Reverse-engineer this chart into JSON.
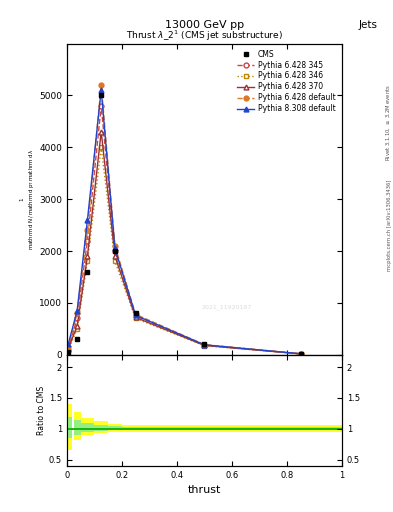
{
  "title_top": "13000 GeV pp",
  "title_right": "Jets",
  "plot_title": "Thrust $\\lambda\\_2^1$ (CMS jet substructure)",
  "xlabel": "thrust",
  "ylabel_main": "$\\frac{1}{\\mathrm{d}N}\\,/\\,\\mathrm{d}\\,p_\\mathrm{T}\\,\\mathrm{d}\\,\\lambda$",
  "ylabel_ratio": "Ratio to CMS",
  "right_label_top": "Rivet 3.1.10, $\\geq$ 3.2M events",
  "right_label_bottom": "mcplots.cern.ch [arXiv:1306.3436]",
  "watermark": "2021_11920187",
  "thrust_x": [
    0.005,
    0.0375,
    0.075,
    0.125,
    0.175,
    0.25,
    0.5,
    0.85
  ],
  "thrust_bins_edges": [
    0.0,
    0.025,
    0.05,
    0.1,
    0.15,
    0.2,
    0.3,
    0.7,
    1.0
  ],
  "cms_data": [
    50.0,
    300.0,
    1600.0,
    5000.0,
    2000.0,
    800.0,
    200.0,
    20.0
  ],
  "cms_color": "#000000",
  "series": [
    {
      "label": "Pythia 6.428 345",
      "color": "#cc4444",
      "linestyle": "--",
      "marker": "o",
      "markerfacecolor": "none",
      "values": [
        100.0,
        700.0,
        2200.0,
        4800.0,
        2000.0,
        750.0,
        190.0,
        18.0
      ]
    },
    {
      "label": "Pythia 6.428 346",
      "color": "#bb8800",
      "linestyle": ":",
      "marker": "s",
      "markerfacecolor": "none",
      "values": [
        80.0,
        500.0,
        1800.0,
        4000.0,
        1800.0,
        700.0,
        175.0,
        16.0
      ]
    },
    {
      "label": "Pythia 6.428 370",
      "color": "#993333",
      "linestyle": "-",
      "marker": "^",
      "markerfacecolor": "none",
      "values": [
        120.0,
        550.0,
        1900.0,
        4300.0,
        1900.0,
        720.0,
        180.0,
        17.0
      ]
    },
    {
      "label": "Pythia 6.428 default",
      "color": "#dd7722",
      "linestyle": "--",
      "marker": "o",
      "markerfacecolor": "#dd7722",
      "values": [
        150.0,
        800.0,
        2400.0,
        5200.0,
        2100.0,
        780.0,
        195.0,
        19.0
      ]
    },
    {
      "label": "Pythia 8.308 default",
      "color": "#2244cc",
      "linestyle": "-",
      "marker": "^",
      "markerfacecolor": "#2244cc",
      "values": [
        200.0,
        850.0,
        2600.0,
        5100.0,
        2050.0,
        760.0,
        192.0,
        18.5
      ]
    }
  ],
  "ratio_yellow_lo": [
    0.65,
    0.82,
    0.9,
    0.93,
    0.95,
    0.95,
    0.95,
    0.95
  ],
  "ratio_yellow_hi": [
    1.4,
    1.28,
    1.18,
    1.12,
    1.08,
    1.07,
    1.07,
    1.07
  ],
  "ratio_green_lo": [
    0.85,
    0.9,
    0.95,
    0.97,
    0.98,
    0.98,
    0.98,
    0.98
  ],
  "ratio_green_hi": [
    1.2,
    1.15,
    1.09,
    1.06,
    1.04,
    1.03,
    1.03,
    1.03
  ],
  "ylim_main": [
    0,
    6000
  ],
  "ylim_ratio": [
    0.4,
    2.2
  ],
  "yticks_main": [
    0,
    1000,
    2000,
    3000,
    4000,
    5000
  ],
  "ytick_labels_main": [
    "0",
    "1000",
    "2000",
    "3000",
    "4000",
    "5000"
  ],
  "yticks_ratio": [
    0.5,
    1.0,
    1.5,
    2.0
  ],
  "background": "#ffffff"
}
